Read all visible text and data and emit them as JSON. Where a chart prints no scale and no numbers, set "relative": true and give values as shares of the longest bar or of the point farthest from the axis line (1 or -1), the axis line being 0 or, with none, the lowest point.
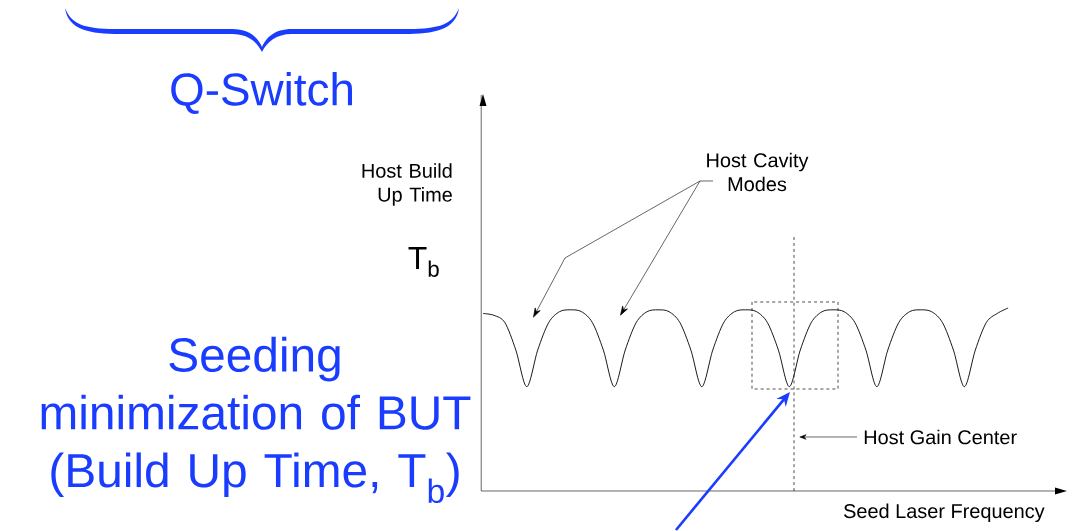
{
  "chart_data": {
    "type": "line",
    "relative": true,
    "title": "Q-Switch",
    "xlabel": "Seed Laser Frequency",
    "categories": [
      null,
      null,
      null,
      null,
      null,
      null,
      null,
      null,
      null,
      null,
      null,
      null,
      null,
      null,
      null,
      null,
      null,
      null,
      null,
      null,
      null,
      null,
      null,
      null,
      null,
      null,
      null,
      null,
      null,
      null,
      null,
      null,
      null,
      null,
      null,
      null,
      null,
      null,
      null,
      null,
      null,
      null,
      null,
      null,
      null,
      null,
      null,
      null,
      null
    ],
    "series": [
      {
        "color": "#000000",
        "values": [
          0.97,
          0.96,
          0.92,
          0.77,
          0.57,
          0.77,
          0.92,
          0.98,
          0.99,
          0.98,
          0.92,
          0.77,
          0.57,
          0.77,
          0.92,
          0.98,
          0.99,
          0.98,
          0.92,
          0.77,
          0.57,
          0.77,
          0.92,
          0.98,
          0.99,
          0.98,
          0.92,
          0.77,
          0.57,
          0.77,
          0.92,
          0.98,
          0.99,
          0.98,
          0.92,
          0.77,
          0.57,
          0.77,
          0.92,
          0.98,
          0.99,
          0.98,
          0.92,
          0.77,
          0.57,
          0.77,
          0.92,
          0.97,
          1.0
        ]
      }
    ],
    "marker": "none",
    "line_style": "solid",
    "annotations": [
      "Seeding minimization of BUT (Build Up Time, T$_{b}$)",
      "Host Cavity Modes",
      "Host Build Up Time",
      "T$_{b}$",
      "Host Gain Center"
    ]
  }
}
